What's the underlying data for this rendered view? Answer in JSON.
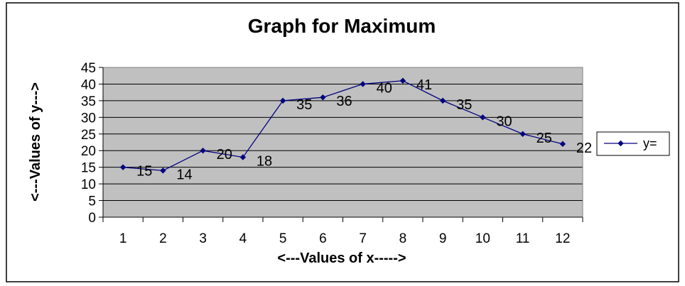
{
  "chart_data": {
    "type": "line",
    "title": "Graph for Maximum",
    "xlabel": "<---Values of x----->",
    "ylabel": "<---Values of y--->",
    "x": [
      "1",
      "2",
      "3",
      "4",
      "5",
      "6",
      "7",
      "8",
      "9",
      "10",
      "11",
      "12"
    ],
    "series": [
      {
        "name": "y=",
        "values": [
          15,
          14,
          20,
          18,
          35,
          36,
          40,
          41,
          35,
          30,
          25,
          22
        ]
      }
    ],
    "ylim": [
      0,
      45
    ],
    "yticks": [
      0,
      5,
      10,
      15,
      20,
      25,
      30,
      35,
      40,
      45
    ],
    "grid": true,
    "legend_position": "right",
    "colors": {
      "series": "#000080",
      "plot_background": "#c0c0c0"
    }
  }
}
